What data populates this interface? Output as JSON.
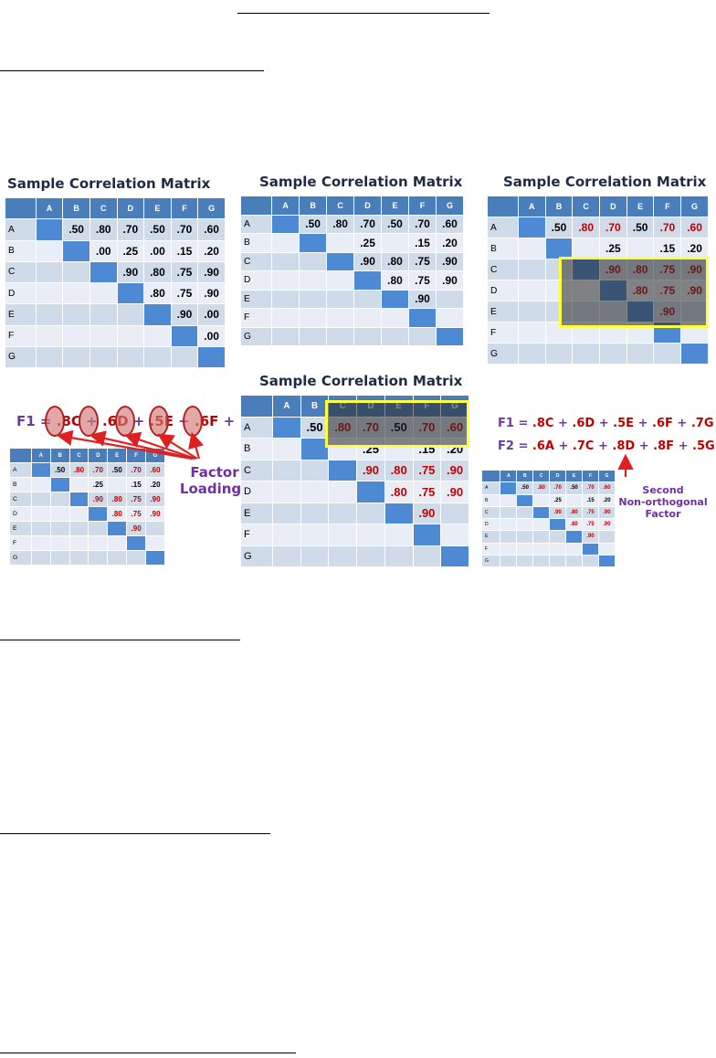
{
  "matrix_title": "Sample Correlation Matrix",
  "columns": [
    "A",
    "B",
    "C",
    "D",
    "E",
    "F",
    "G"
  ],
  "rows": [
    {
      "label": "A",
      "cells": [
        "",
        ".50",
        ".80",
        ".70",
        ".50",
        ".70",
        ".60"
      ]
    },
    {
      "label": "B",
      "cells": [
        "",
        "",
        ".00",
        ".25",
        ".00",
        ".15",
        ".20"
      ]
    },
    {
      "label": "C",
      "cells": [
        "",
        "",
        "",
        ".90",
        ".80",
        ".75",
        ".90"
      ]
    },
    {
      "label": "D",
      "cells": [
        "",
        "",
        "",
        "",
        ".80",
        ".75",
        ".90"
      ]
    },
    {
      "label": "E",
      "cells": [
        "",
        "",
        "",
        "",
        "",
        ".90",
        ".00"
      ]
    },
    {
      "label": "F",
      "cells": [
        "",
        "",
        "",
        "",
        "",
        "",
        ".00"
      ]
    },
    {
      "label": "G",
      "cells": [
        "",
        "",
        "",
        "",
        "",
        "",
        ""
      ]
    }
  ],
  "rows_reduced": [
    {
      "label": "A",
      "cells": [
        "",
        ".50",
        ".80",
        ".70",
        ".50",
        ".70",
        ".60"
      ]
    },
    {
      "label": "B",
      "cells": [
        "",
        "",
        "",
        ".25",
        "",
        ".15",
        ".20"
      ]
    },
    {
      "label": "C",
      "cells": [
        "",
        "",
        "",
        ".90",
        ".80",
        ".75",
        ".90"
      ]
    },
    {
      "label": "D",
      "cells": [
        "",
        "",
        "",
        "",
        ".80",
        ".75",
        ".90"
      ]
    },
    {
      "label": "E",
      "cells": [
        "",
        "",
        "",
        "",
        "",
        ".90",
        ""
      ]
    },
    {
      "label": "F",
      "cells": [
        "",
        "",
        "",
        "",
        "",
        "",
        ""
      ]
    },
    {
      "label": "G",
      "cells": [
        "",
        "",
        "",
        "",
        "",
        "",
        ""
      ]
    }
  ],
  "f1_terms": [
    {
      "coef": ".8",
      "var": "C"
    },
    {
      "coef": ".6",
      "var": "D"
    },
    {
      "coef": ".5",
      "var": "E"
    },
    {
      "coef": ".6",
      "var": "F"
    },
    {
      "coef": ".7",
      "var": "G"
    }
  ],
  "f2_terms": [
    {
      "coef": ".6",
      "var": "A"
    },
    {
      "coef": ".7",
      "var": "C"
    },
    {
      "coef": ".8",
      "var": "D"
    },
    {
      "coef": ".8",
      "var": "F"
    },
    {
      "coef": ".5",
      "var": "G"
    }
  ],
  "f1_label": "F1",
  "f2_label": "F2",
  "equals": "=",
  "plus": "+",
  "factor_loadings_label": "Factor\nLoadings",
  "second_factor_label": "Second\nNon-orthogonal\nFactor",
  "colors": {
    "header": "#4a7ebb",
    "diagonal": "#4e8ad3",
    "row_odd": "#d0dbea",
    "row_even": "#e9eef6",
    "highlight_value": "#c00000",
    "highlight_box": "#ffff3c",
    "formula_text": "#6a3d9a",
    "arrow": "#e02020"
  }
}
